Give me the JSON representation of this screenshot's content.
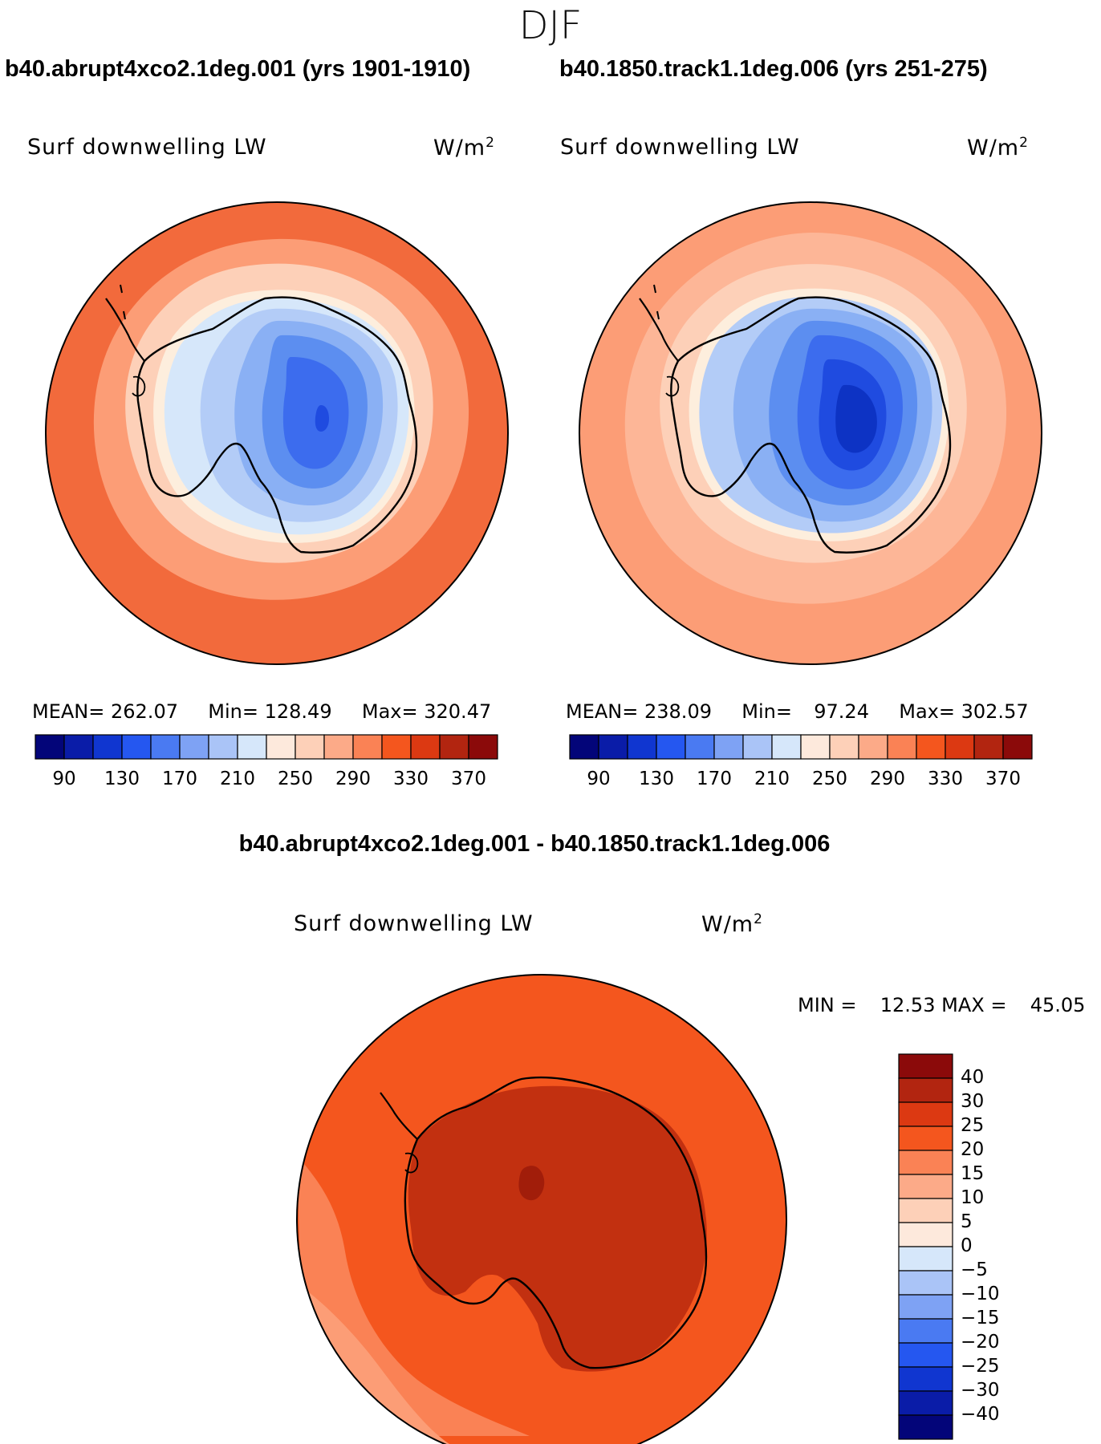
{
  "header": {
    "season": "DJF"
  },
  "panels": [
    {
      "case_title": "b40.abrupt4xco2.1deg.001 (yrs 1901-1910)",
      "variable": "Surf downwelling LW",
      "units_base": "W/m",
      "units_exp": "2",
      "stats": {
        "mean_label": "MEAN=",
        "mean": "262.07",
        "min_label": "Min=",
        "min": "128.49",
        "max_label": "Max=",
        "max": "320.47"
      },
      "colorbar_ticks": [
        "90",
        "130",
        "170",
        "210",
        "250",
        "290",
        "330",
        "370"
      ],
      "field": {
        "ocean_outer": "#f26a3c",
        "ocean_mid": "#fc9d76",
        "ocean_inner": "#fdd0b8",
        "coast_ring": "#fdeedd",
        "land_edge": "#d6e7fa",
        "land_1": "#b3ccf7",
        "land_2": "#8ab0f4",
        "land_3": "#5c8ef0",
        "land_4": "#3c6cee",
        "land_core": "#1f4be0"
      }
    },
    {
      "case_title": "b40.1850.track1.1deg.006 (yrs 251-275)",
      "variable": "Surf downwelling LW",
      "units_base": "W/m",
      "units_exp": "2",
      "stats": {
        "mean_label": "MEAN=",
        "mean": "238.09",
        "min_label": "Min=",
        "min": "97.24",
        "max_label": "Max=",
        "max": "302.57"
      },
      "colorbar_ticks": [
        "90",
        "130",
        "170",
        "210",
        "250",
        "290",
        "330",
        "370"
      ],
      "field": {
        "ocean_outer": "#fc9d76",
        "ocean_mid": "#fdb697",
        "ocean_inner": "#fdd0b8",
        "coast_ring": "#fdeedd",
        "land_edge": "#b3ccf7",
        "land_1": "#8ab0f4",
        "land_2": "#5c8ef0",
        "land_3": "#3c6cee",
        "land_4": "#1f4be0",
        "land_core": "#0d33c4"
      }
    }
  ],
  "difference": {
    "title": "b40.abrupt4xco2.1deg.001 - b40.1850.track1.1deg.006",
    "variable": "Surf downwelling LW",
    "units_base": "W/m",
    "units_exp": "2",
    "stats": {
      "min_label": "MIN =",
      "min": "12.53",
      "max_label": "MAX =",
      "max": "45.05"
    },
    "colorbar_ticks": [
      "40",
      "30",
      "25",
      "20",
      "15",
      "10",
      "5",
      "0",
      "−5",
      "−10",
      "−15",
      "−20",
      "−25",
      "−30",
      "−40"
    ],
    "field": {
      "ocean": "#f4561e",
      "ocean_light": "#fa8255",
      "ocean_pale": "#fc9d76",
      "land": "#c23010",
      "land_hot": "#a11d0a"
    }
  },
  "palette": {
    "absolute": [
      "#030579",
      "#0a1ca8",
      "#1036d0",
      "#2557f0",
      "#4a7af2",
      "#7ea2f4",
      "#aac4f7",
      "#d6e7fa",
      "#fde9dc",
      "#fdd0b8",
      "#fcaa88",
      "#fa8255",
      "#f4561e",
      "#dc3912",
      "#b22510",
      "#8b0a0a"
    ],
    "difference": [
      "#8b0a0a",
      "#b22510",
      "#dc3912",
      "#f4561e",
      "#fa8255",
      "#fcaa88",
      "#fdd0b8",
      "#fde9dc",
      "#d6e7fa",
      "#aac4f7",
      "#7ea2f4",
      "#4a7af2",
      "#2557f0",
      "#1036d0",
      "#0a1ca8",
      "#030579"
    ]
  }
}
